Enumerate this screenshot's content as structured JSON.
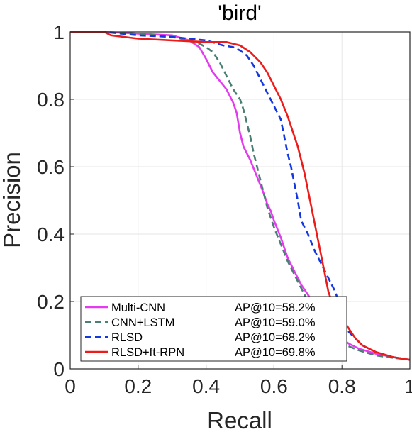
{
  "chart_data": {
    "type": "line",
    "title": "'bird'",
    "xlabel": "Recall",
    "ylabel": "Precision",
    "xlim": [
      0,
      1
    ],
    "ylim": [
      0,
      1
    ],
    "xticks": [
      0,
      0.2,
      0.4,
      0.6,
      0.8,
      1
    ],
    "xtick_labels": [
      "0",
      "0.2",
      "0.4",
      "0.6",
      "0.8",
      "1"
    ],
    "yticks": [
      0,
      0.2,
      0.4,
      0.6,
      0.8,
      1
    ],
    "ytick_labels": [
      "0",
      "0.2",
      "0.4",
      "0.6",
      "0.8",
      "1"
    ],
    "grid": true,
    "legend_position": "bottom-left",
    "series": [
      {
        "name": "Multi-CNN",
        "ap_label": "AP@10=58.2%",
        "color": "#e53bf0",
        "dash": "solid",
        "points": [
          [
            0.0,
            1.0
          ],
          [
            0.1,
            1.0
          ],
          [
            0.2,
            0.995
          ],
          [
            0.3,
            0.99
          ],
          [
            0.35,
            0.975
          ],
          [
            0.38,
            0.955
          ],
          [
            0.4,
            0.92
          ],
          [
            0.42,
            0.88
          ],
          [
            0.44,
            0.855
          ],
          [
            0.46,
            0.83
          ],
          [
            0.47,
            0.81
          ],
          [
            0.48,
            0.79
          ],
          [
            0.49,
            0.76
          ],
          [
            0.5,
            0.7
          ],
          [
            0.51,
            0.66
          ],
          [
            0.53,
            0.62
          ],
          [
            0.55,
            0.57
          ],
          [
            0.57,
            0.52
          ],
          [
            0.58,
            0.49
          ],
          [
            0.59,
            0.47
          ],
          [
            0.6,
            0.44
          ],
          [
            0.62,
            0.39
          ],
          [
            0.64,
            0.33
          ],
          [
            0.66,
            0.29
          ],
          [
            0.68,
            0.25
          ],
          [
            0.7,
            0.22
          ],
          [
            0.72,
            0.19
          ],
          [
            0.74,
            0.16
          ],
          [
            0.76,
            0.13
          ],
          [
            0.78,
            0.11
          ],
          [
            0.8,
            0.09
          ],
          [
            0.82,
            0.075
          ],
          [
            0.85,
            0.06
          ],
          [
            0.9,
            0.045
          ],
          [
            0.95,
            0.035
          ],
          [
            1.0,
            0.027
          ]
        ]
      },
      {
        "name": "CNN+LSTM",
        "ap_label": "AP@10=59.0%",
        "color": "#4a7f73",
        "dash": "dashed",
        "points": [
          [
            0.0,
            1.0
          ],
          [
            0.1,
            1.0
          ],
          [
            0.2,
            0.995
          ],
          [
            0.3,
            0.985
          ],
          [
            0.35,
            0.975
          ],
          [
            0.38,
            0.965
          ],
          [
            0.4,
            0.955
          ],
          [
            0.42,
            0.94
          ],
          [
            0.44,
            0.91
          ],
          [
            0.46,
            0.87
          ],
          [
            0.48,
            0.83
          ],
          [
            0.5,
            0.8
          ],
          [
            0.51,
            0.77
          ],
          [
            0.52,
            0.73
          ],
          [
            0.53,
            0.69
          ],
          [
            0.54,
            0.64
          ],
          [
            0.55,
            0.6
          ],
          [
            0.56,
            0.56
          ],
          [
            0.57,
            0.52
          ],
          [
            0.58,
            0.48
          ],
          [
            0.59,
            0.45
          ],
          [
            0.6,
            0.42
          ],
          [
            0.62,
            0.37
          ],
          [
            0.64,
            0.32
          ],
          [
            0.66,
            0.28
          ],
          [
            0.68,
            0.24
          ],
          [
            0.7,
            0.2
          ],
          [
            0.72,
            0.17
          ],
          [
            0.74,
            0.14
          ],
          [
            0.76,
            0.11
          ],
          [
            0.78,
            0.09
          ],
          [
            0.8,
            0.075
          ],
          [
            0.85,
            0.055
          ],
          [
            0.9,
            0.04
          ],
          [
            0.95,
            0.033
          ],
          [
            1.0,
            0.027
          ]
        ]
      },
      {
        "name": "RLSD",
        "ap_label": "AP@10=68.2%",
        "color": "#1438e0",
        "dash": "dashed",
        "points": [
          [
            0.0,
            1.0
          ],
          [
            0.1,
            1.0
          ],
          [
            0.2,
            0.99
          ],
          [
            0.3,
            0.985
          ],
          [
            0.4,
            0.975
          ],
          [
            0.45,
            0.96
          ],
          [
            0.48,
            0.955
          ],
          [
            0.5,
            0.945
          ],
          [
            0.52,
            0.93
          ],
          [
            0.54,
            0.9
          ],
          [
            0.56,
            0.86
          ],
          [
            0.58,
            0.82
          ],
          [
            0.6,
            0.78
          ],
          [
            0.62,
            0.74
          ],
          [
            0.63,
            0.69
          ],
          [
            0.64,
            0.64
          ],
          [
            0.65,
            0.6
          ],
          [
            0.66,
            0.55
          ],
          [
            0.67,
            0.5
          ],
          [
            0.68,
            0.44
          ],
          [
            0.7,
            0.4
          ],
          [
            0.72,
            0.35
          ],
          [
            0.74,
            0.31
          ],
          [
            0.76,
            0.27
          ],
          [
            0.78,
            0.23
          ],
          [
            0.79,
            0.2
          ],
          [
            0.8,
            0.17
          ],
          [
            0.81,
            0.14
          ],
          [
            0.82,
            0.11
          ],
          [
            0.84,
            0.09
          ],
          [
            0.86,
            0.07
          ],
          [
            0.9,
            0.05
          ],
          [
            0.95,
            0.035
          ],
          [
            1.0,
            0.027
          ]
        ]
      },
      {
        "name": "RLSD+ft-RPN",
        "ap_label": "AP@10=69.8%",
        "color": "#ee1b1b",
        "dash": "solid",
        "points": [
          [
            0.0,
            1.0
          ],
          [
            0.1,
            1.0
          ],
          [
            0.12,
            0.99
          ],
          [
            0.2,
            0.98
          ],
          [
            0.3,
            0.975
          ],
          [
            0.4,
            0.97
          ],
          [
            0.46,
            0.97
          ],
          [
            0.5,
            0.96
          ],
          [
            0.53,
            0.94
          ],
          [
            0.56,
            0.91
          ],
          [
            0.58,
            0.88
          ],
          [
            0.6,
            0.84
          ],
          [
            0.62,
            0.8
          ],
          [
            0.64,
            0.75
          ],
          [
            0.65,
            0.72
          ],
          [
            0.66,
            0.69
          ],
          [
            0.67,
            0.66
          ],
          [
            0.68,
            0.62
          ],
          [
            0.69,
            0.58
          ],
          [
            0.7,
            0.53
          ],
          [
            0.71,
            0.48
          ],
          [
            0.72,
            0.43
          ],
          [
            0.73,
            0.38
          ],
          [
            0.74,
            0.33
          ],
          [
            0.75,
            0.28
          ],
          [
            0.76,
            0.23
          ],
          [
            0.77,
            0.2
          ],
          [
            0.78,
            0.17
          ],
          [
            0.8,
            0.15
          ],
          [
            0.82,
            0.12
          ],
          [
            0.84,
            0.09
          ],
          [
            0.86,
            0.07
          ],
          [
            0.9,
            0.05
          ],
          [
            0.95,
            0.035
          ],
          [
            1.0,
            0.027
          ]
        ]
      }
    ]
  }
}
